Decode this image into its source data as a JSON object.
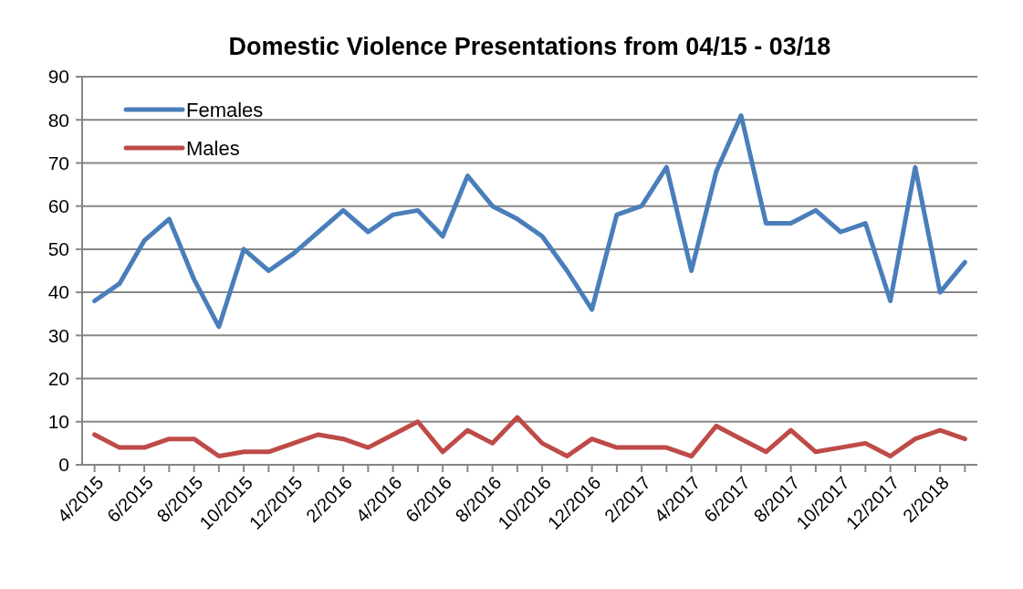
{
  "chart_data": {
    "type": "line",
    "title": "Domestic Violence Presentations from 04/15 - 03/18",
    "categories": [
      "4/2015",
      null,
      "6/2015",
      null,
      "8/2015",
      null,
      "10/2015",
      null,
      "12/2015",
      null,
      "2/2016",
      null,
      "4/2016",
      null,
      "6/2016",
      null,
      "8/2016",
      null,
      "10/2016",
      null,
      "12/2016",
      null,
      "2/2017",
      null,
      "4/2017",
      null,
      "6/2017",
      null,
      "8/2017",
      null,
      "10/2017",
      null,
      "12/2017",
      null,
      "2/2018",
      null
    ],
    "series": [
      {
        "name": "Females",
        "color": "#4a7ebb",
        "values": [
          38,
          42,
          52,
          57,
          43,
          32,
          50,
          45,
          49,
          54,
          59,
          54,
          58,
          59,
          53,
          67,
          60,
          57,
          53,
          45,
          36,
          58,
          60,
          69,
          45,
          68,
          81,
          56,
          56,
          59,
          54,
          56,
          38,
          69,
          40,
          47
        ]
      },
      {
        "name": "Males",
        "color": "#be4b48",
        "values": [
          7,
          4,
          4,
          6,
          6,
          2,
          3,
          3,
          5,
          7,
          6,
          4,
          7,
          10,
          3,
          8,
          5,
          11,
          5,
          2,
          6,
          4,
          4,
          4,
          2,
          9,
          6,
          3,
          8,
          3,
          4,
          5,
          2,
          6,
          8,
          6
        ]
      }
    ],
    "ylim": [
      0,
      90
    ],
    "yticks": [
      0,
      10,
      20,
      30,
      40,
      50,
      60,
      70,
      80,
      90
    ],
    "grid": "y",
    "legend": "top left",
    "marker": "none",
    "line_style": "solid"
  }
}
